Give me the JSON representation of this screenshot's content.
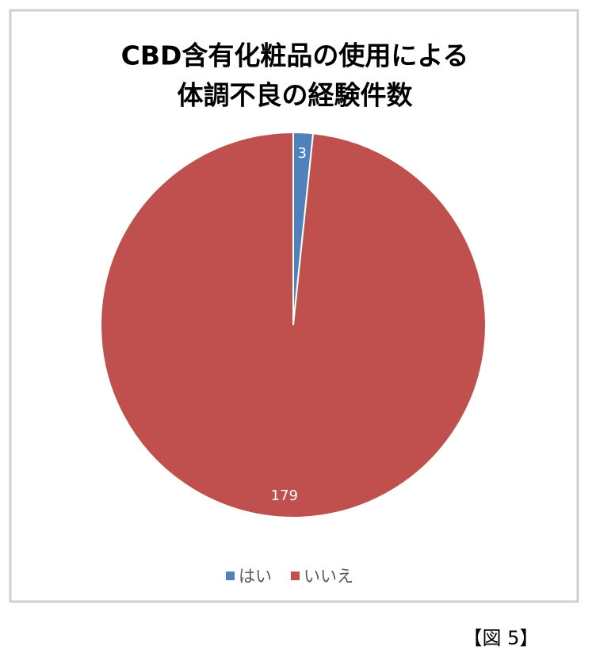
{
  "chart_data": {
    "type": "pie",
    "title": [
      "CBD含有化粧品の使用による",
      "体調不良の経験件数"
    ],
    "categories": [
      "はい",
      "いいえ"
    ],
    "values": [
      3,
      179
    ],
    "colors": [
      "#4f81bd",
      "#c0504d"
    ],
    "legend": "bottom"
  },
  "caption": "【図 5】"
}
